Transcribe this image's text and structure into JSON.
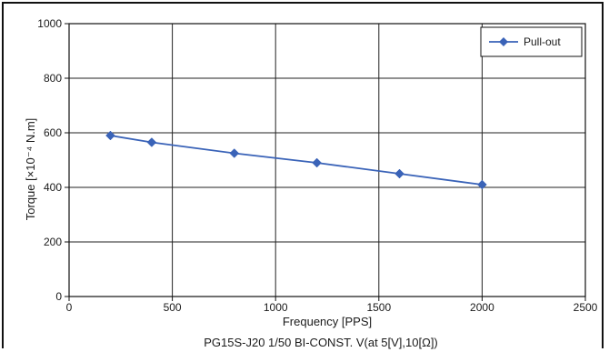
{
  "chart_data": {
    "type": "line",
    "title": "",
    "caption": "PG15S-J20 1/50 BI-CONST. V(at 5[V],10[Ω])",
    "xlabel": "Frequency [PPS]",
    "ylabel": "Torque [×10⁻⁴ N.m]",
    "xlim": [
      0,
      2500
    ],
    "ylim": [
      0,
      1000
    ],
    "xticks": [
      0,
      500,
      1000,
      1500,
      2000,
      2500
    ],
    "yticks": [
      0,
      200,
      400,
      600,
      800,
      1000
    ],
    "grid": true,
    "legend_position": "top-right",
    "series": [
      {
        "name": "Pull-out",
        "color": "#3a63b8",
        "marker": "diamond",
        "x": [
          200,
          400,
          800,
          1200,
          1600,
          2000
        ],
        "y": [
          590,
          565,
          525,
          490,
          450,
          410
        ]
      }
    ]
  }
}
